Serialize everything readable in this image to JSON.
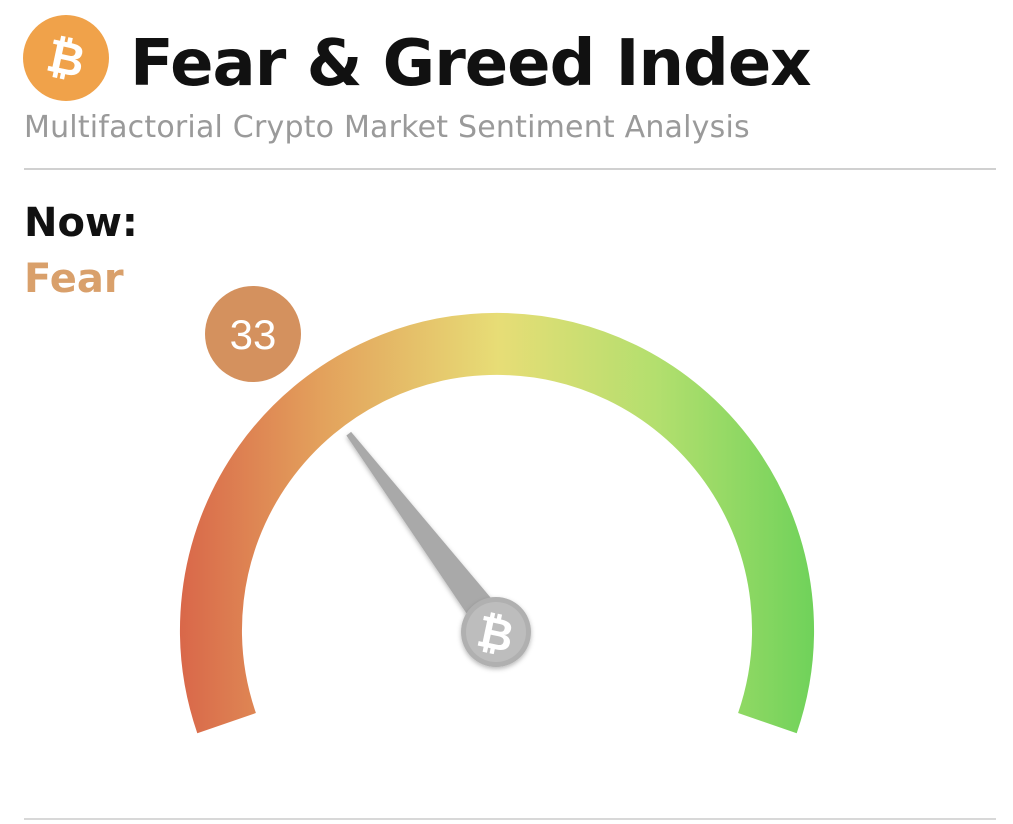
{
  "header": {
    "title": "Fear & Greed Index",
    "subtitle": "Multifactorial Crypto Market Sentiment Analysis",
    "logo_icon": "bitcoin-icon",
    "logo_color": "#f0a24a"
  },
  "current": {
    "label": "Now:",
    "classification": "Fear",
    "classification_color": "#d9a06b",
    "value": "33",
    "badge_color": "#d4915e"
  },
  "gauge": {
    "min": 0,
    "max": 100,
    "value": 33,
    "hub_icon": "bitcoin-icon",
    "colors": {
      "extreme_fear": "#d9684a",
      "fear": "#e3a15c",
      "neutral": "#e7dd76",
      "greed": "#b3df6e",
      "extreme_greed": "#6fd25a"
    }
  }
}
